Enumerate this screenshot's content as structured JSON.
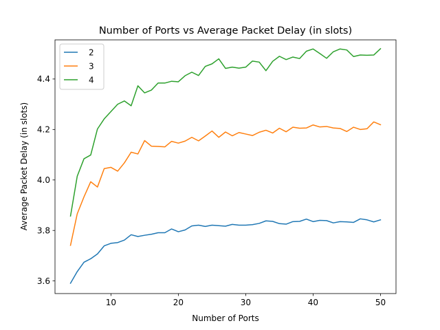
{
  "chart_data": {
    "type": "line",
    "title": "Number of Ports vs Average Packet Delay (in slots)",
    "xlabel": "Number of Ports",
    "ylabel": "Average Packet Delay (in slots)",
    "xlim": [
      1.7,
      52.3
    ],
    "ylim": [
      3.55,
      4.555
    ],
    "xticks": [
      10,
      20,
      30,
      40,
      50
    ],
    "xtick_labels": [
      "10",
      "20",
      "30",
      "40",
      "50"
    ],
    "yticks": [
      3.6,
      3.8,
      4.0,
      4.2,
      4.4
    ],
    "ytick_labels": [
      "3.6",
      "3.8",
      "4.0",
      "4.2",
      "4.4"
    ],
    "grid": false,
    "legend_position": "top-left",
    "x": [
      4,
      5,
      6,
      7,
      8,
      9,
      10,
      11,
      12,
      13,
      14,
      15,
      16,
      17,
      18,
      19,
      20,
      21,
      22,
      23,
      24,
      25,
      26,
      27,
      28,
      29,
      30,
      31,
      32,
      33,
      34,
      35,
      36,
      37,
      38,
      39,
      40,
      41,
      42,
      43,
      44,
      45,
      46,
      47,
      48,
      49,
      50
    ],
    "series": [
      {
        "name": "2",
        "color": "#1f77b4",
        "values": [
          3.591,
          3.637,
          3.674,
          3.688,
          3.707,
          3.739,
          3.749,
          3.752,
          3.762,
          3.783,
          3.776,
          3.781,
          3.785,
          3.791,
          3.791,
          3.806,
          3.795,
          3.802,
          3.818,
          3.821,
          3.816,
          3.821,
          3.819,
          3.817,
          3.824,
          3.821,
          3.821,
          3.823,
          3.828,
          3.838,
          3.836,
          3.827,
          3.825,
          3.835,
          3.836,
          3.845,
          3.835,
          3.84,
          3.839,
          3.83,
          3.835,
          3.834,
          3.832,
          3.846,
          3.842,
          3.834,
          3.842
        ]
      },
      {
        "name": "3",
        "color": "#ff7f0e",
        "values": [
          3.741,
          3.866,
          3.933,
          3.993,
          3.972,
          4.045,
          4.05,
          4.035,
          4.068,
          4.11,
          4.103,
          4.156,
          4.134,
          4.133,
          4.131,
          4.153,
          4.146,
          4.154,
          4.169,
          4.155,
          4.174,
          4.194,
          4.169,
          4.19,
          4.175,
          4.188,
          4.182,
          4.176,
          4.189,
          4.197,
          4.186,
          4.205,
          4.191,
          4.209,
          4.205,
          4.206,
          4.218,
          4.21,
          4.212,
          4.206,
          4.204,
          4.192,
          4.209,
          4.2,
          4.203,
          4.23,
          4.219
        ]
      },
      {
        "name": "4",
        "color": "#2ca02c",
        "values": [
          3.857,
          4.015,
          4.084,
          4.099,
          4.202,
          4.242,
          4.271,
          4.3,
          4.313,
          4.294,
          4.373,
          4.345,
          4.356,
          4.384,
          4.384,
          4.391,
          4.389,
          4.413,
          4.427,
          4.414,
          4.45,
          4.46,
          4.48,
          4.442,
          4.447,
          4.443,
          4.447,
          4.471,
          4.467,
          4.433,
          4.47,
          4.49,
          4.477,
          4.487,
          4.481,
          4.51,
          4.519,
          4.501,
          4.482,
          4.508,
          4.519,
          4.515,
          4.489,
          4.495,
          4.494,
          4.495,
          4.52
        ]
      }
    ]
  }
}
